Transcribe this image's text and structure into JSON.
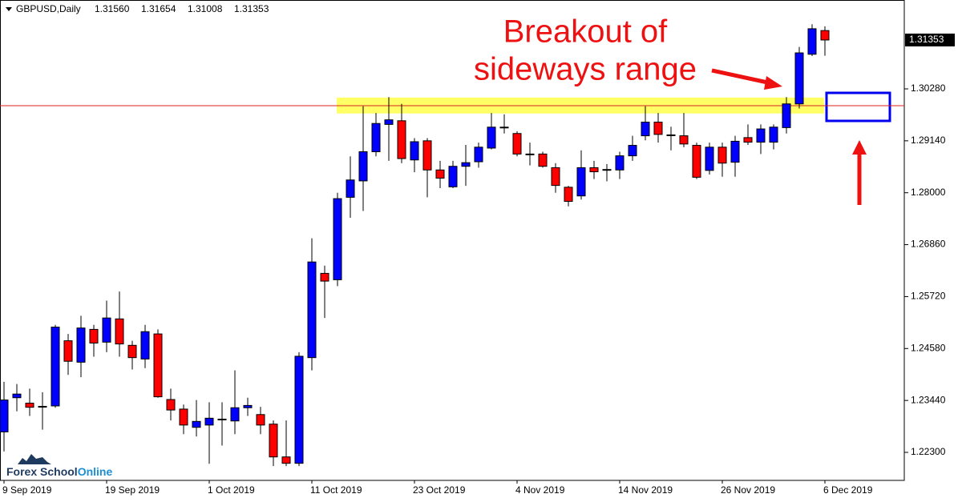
{
  "chart_data": {
    "type": "candlestick",
    "title": "GBPUSD,Daily",
    "ohlc_labels": [
      "1.31560",
      "1.31654",
      "1.31008",
      "1.31353"
    ],
    "categories": [
      "9 Sep 2019",
      null,
      null,
      null,
      null,
      null,
      null,
      null,
      "19 Sep 2019",
      null,
      null,
      null,
      null,
      null,
      null,
      null,
      "1 Oct 2019",
      null,
      null,
      null,
      null,
      null,
      null,
      null,
      "11 Oct 2019",
      null,
      null,
      null,
      null,
      null,
      null,
      null,
      "23 Oct 2019",
      null,
      null,
      null,
      null,
      null,
      null,
      null,
      "4 Nov 2019",
      null,
      null,
      null,
      null,
      null,
      null,
      null,
      "14 Nov 2019",
      null,
      null,
      null,
      null,
      null,
      null,
      null,
      "26 Nov 2019",
      null,
      null,
      null,
      null,
      null,
      null,
      null,
      "6 Dec 2019"
    ],
    "open": [
      1.2275,
      1.235,
      1.2338,
      1.233,
      1.2332,
      1.2475,
      1.2428,
      1.25,
      1.2472,
      1.2523,
      1.2465,
      1.2435,
      1.249,
      1.2346,
      1.2325,
      1.2285,
      1.229,
      1.2303,
      1.2299,
      1.2328,
      1.2313,
      1.2292,
      1.222,
      1.2206,
      1.2438,
      1.2623,
      1.2609,
      1.279,
      1.2826,
      1.289,
      1.295,
      1.2958,
      1.2872,
      1.2914,
      1.285,
      1.2813,
      1.2858,
      1.2868,
      1.2898,
      1.2944,
      1.293,
      1.2885,
      1.2885,
      1.2855,
      1.2812,
      1.2793,
      1.2855,
      1.285,
      1.285,
      1.2881,
      1.2925,
      1.2955,
      1.2927,
      1.2925,
      1.2904,
      1.2849,
      1.29,
      1.2867,
      1.2921,
      1.2911,
      1.2911,
      1.2943,
      1.2995,
      1.3104,
      1.3156
    ],
    "high": [
      1.2385,
      1.238,
      1.237,
      1.2362,
      1.251,
      1.249,
      1.253,
      1.251,
      1.2563,
      1.2583,
      1.2475,
      1.251,
      1.25,
      1.237,
      1.2335,
      1.2345,
      1.234,
      1.234,
      1.241,
      1.235,
      1.233,
      1.23,
      1.23,
      1.245,
      1.27,
      1.264,
      1.28,
      1.288,
      1.299,
      1.2975,
      1.301,
      1.2995,
      1.292,
      1.292,
      1.287,
      1.287,
      1.2905,
      1.291,
      1.2975,
      1.2972,
      1.2935,
      1.291,
      1.289,
      1.2865,
      1.2815,
      1.2893,
      1.287,
      1.2863,
      1.289,
      1.2925,
      1.299,
      1.2975,
      1.2945,
      1.2975,
      1.291,
      1.291,
      1.291,
      1.2925,
      1.295,
      1.295,
      1.295,
      1.301,
      1.312,
      1.317,
      1.31654
    ],
    "low": [
      1.2232,
      1.232,
      1.231,
      1.228,
      1.2328,
      1.24,
      1.2395,
      1.244,
      1.245,
      1.244,
      1.2412,
      1.2415,
      1.235,
      1.23,
      1.227,
      1.2265,
      1.2205,
      1.2245,
      1.227,
      1.231,
      1.227,
      1.22,
      1.22,
      1.22,
      1.241,
      1.2525,
      1.2595,
      1.2745,
      1.276,
      1.288,
      1.287,
      1.2865,
      1.2845,
      1.279,
      1.281,
      1.281,
      1.2815,
      1.2855,
      1.2895,
      1.293,
      1.288,
      1.286,
      1.2855,
      1.28,
      1.277,
      1.2785,
      1.283,
      1.2825,
      1.283,
      1.287,
      1.2915,
      1.291,
      1.2893,
      1.29,
      1.283,
      1.284,
      1.2835,
      1.2835,
      1.2905,
      1.2885,
      1.2895,
      1.293,
      1.2985,
      1.31,
      1.31008
    ],
    "close": [
      1.2345,
      1.2358,
      1.2329,
      1.2331,
      1.2505,
      1.243,
      1.2503,
      1.247,
      1.2525,
      1.2468,
      1.2438,
      1.2495,
      1.2352,
      1.2323,
      1.229,
      1.2298,
      1.2305,
      1.2302,
      1.2328,
      1.2333,
      1.229,
      1.222,
      1.2206,
      1.2441,
      1.2648,
      1.2606,
      1.2787,
      1.2828,
      1.289,
      1.2952,
      1.296,
      1.2875,
      1.2912,
      1.285,
      1.2832,
      1.2858,
      1.2866,
      1.29,
      1.2944,
      1.2943,
      1.2885,
      1.2884,
      1.2858,
      1.2816,
      1.2781,
      1.2855,
      1.2846,
      1.2851,
      1.2881,
      1.2904,
      1.2955,
      1.2928,
      1.2926,
      1.2907,
      1.2834,
      1.29,
      1.2865,
      1.2913,
      1.2911,
      1.294,
      1.2944,
      1.2995,
      1.3107,
      1.316,
      1.31353
    ],
    "up_color": "#0000ff",
    "down_color": "#ff0000",
    "ylim": [
      1.21685,
      1.32231
    ],
    "yticks": [
      {
        "value": 1.223,
        "label": "1.22300"
      },
      {
        "value": 1.2344,
        "label": "1.23440"
      },
      {
        "value": 1.2458,
        "label": "1.24580"
      },
      {
        "value": 1.2572,
        "label": "1.25720"
      },
      {
        "value": 1.2686,
        "label": "1.26860"
      },
      {
        "value": 1.28,
        "label": "1.28000"
      },
      {
        "value": 1.2914,
        "label": "1.29140"
      },
      {
        "value": 1.3028,
        "label": "1.30280"
      }
    ],
    "price_label": {
      "value": 1.31353,
      "label": "1.31353"
    },
    "zone": [
      1.2974,
      1.3009
    ],
    "zone_color": "#ffff66",
    "hline": 1.2991,
    "annotation": [
      "Breakout of",
      "sideways range"
    ],
    "watermark": [
      "Forex School",
      "Online"
    ]
  }
}
